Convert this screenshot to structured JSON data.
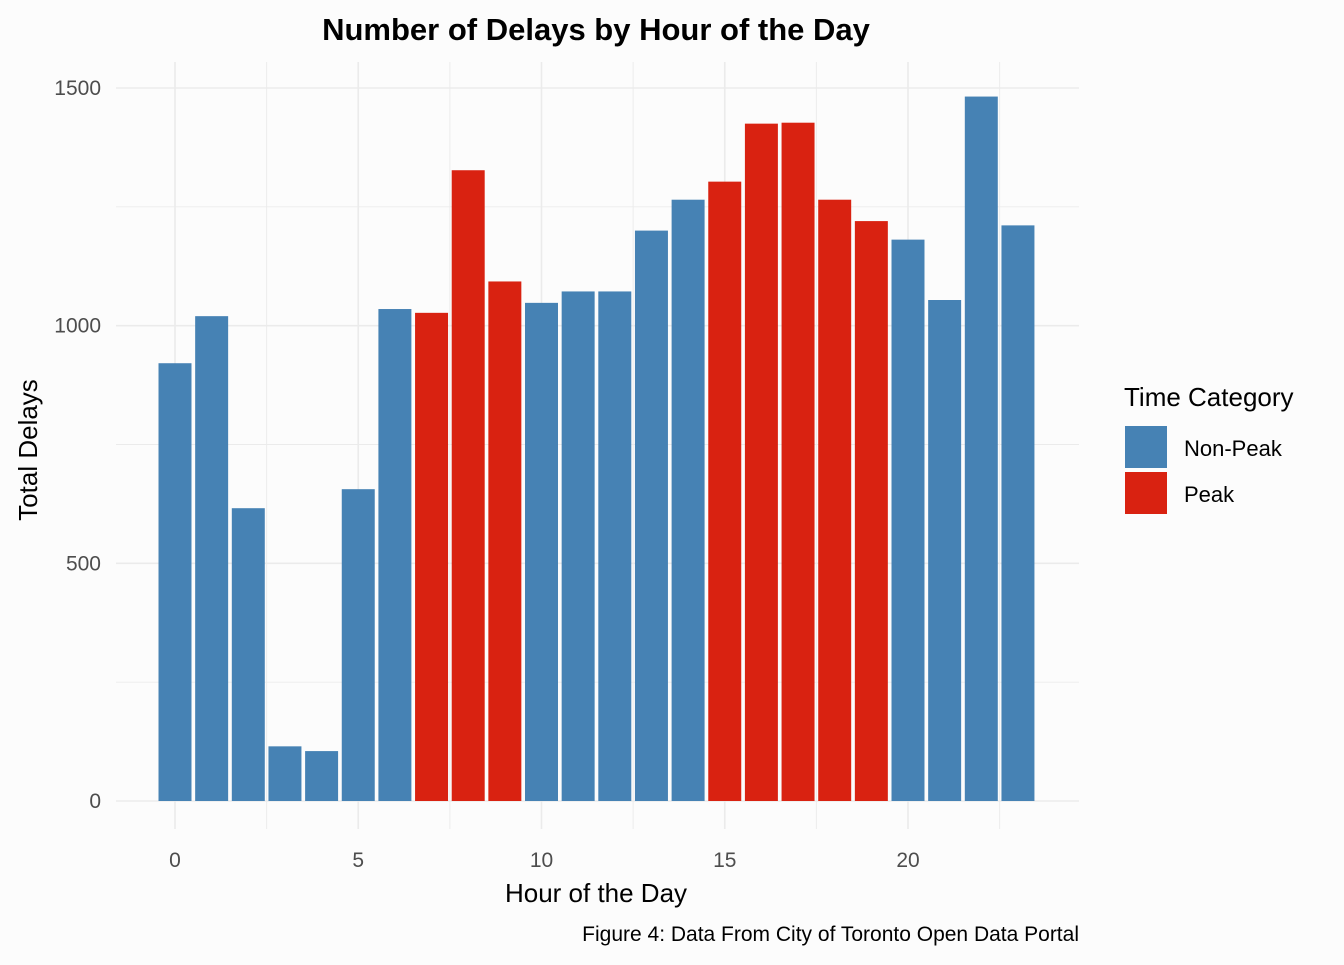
{
  "chart_data": {
    "type": "bar",
    "title": "Number of Delays by Hour of the Day",
    "xlabel": "Hour of the Day",
    "ylabel": "Total Delays",
    "caption": "Figure 4: Data From City of Toronto Open Data Portal",
    "x_ticks": [
      "0",
      "5",
      "10",
      "15",
      "20"
    ],
    "y_ticks": [
      "0",
      "500",
      "1000",
      "1500"
    ],
    "xlim": [
      -1.5,
      24.1
    ],
    "ylim": [
      0,
      1555
    ],
    "grid": true,
    "legend": {
      "title": "Time Category",
      "placement": "right",
      "entries": [
        {
          "label": "Non-Peak",
          "color": "#4682b4"
        },
        {
          "label": "Peak",
          "color": "#d92211"
        }
      ]
    },
    "hours": [
      0,
      1,
      2,
      3,
      4,
      5,
      6,
      7,
      8,
      9,
      10,
      11,
      12,
      13,
      14,
      15,
      16,
      17,
      18,
      19,
      20,
      21,
      22,
      23
    ],
    "values": [
      921,
      1020,
      616,
      115,
      105,
      656,
      1035,
      1027,
      1327,
      1093,
      1048,
      1072,
      1072,
      1200,
      1265,
      1303,
      1425,
      1427,
      1265,
      1220,
      1181,
      1054,
      1482,
      1211
    ],
    "categories": [
      "Non-Peak",
      "Non-Peak",
      "Non-Peak",
      "Non-Peak",
      "Non-Peak",
      "Non-Peak",
      "Non-Peak",
      "Peak",
      "Peak",
      "Peak",
      "Non-Peak",
      "Non-Peak",
      "Non-Peak",
      "Non-Peak",
      "Non-Peak",
      "Peak",
      "Peak",
      "Peak",
      "Peak",
      "Peak",
      "Non-Peak",
      "Non-Peak",
      "Non-Peak",
      "Non-Peak"
    ]
  }
}
